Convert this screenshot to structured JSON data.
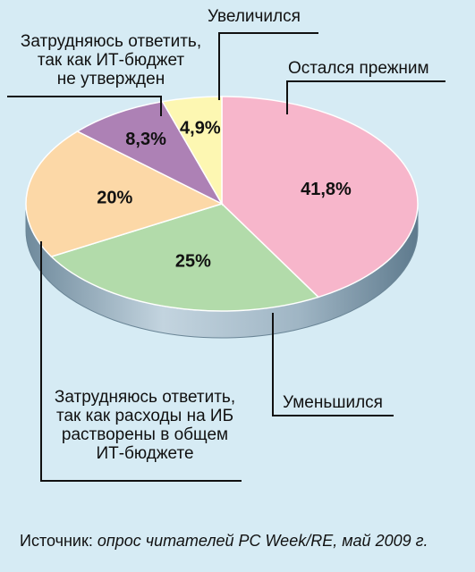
{
  "chart_data": {
    "type": "pie",
    "style": "3d",
    "slices": [
      {
        "label": "Остался прежним",
        "value": 41.8,
        "display": "41,8%",
        "color": "#f7b6cb"
      },
      {
        "label": "Уменьшился",
        "value": 25,
        "display": "25%",
        "color": "#b2dbaa"
      },
      {
        "label": "Затрудняюсь ответить, так как расходы на ИБ растворены в общем ИТ-бюджете",
        "value": 20,
        "display": "20%",
        "color": "#fcd8a7"
      },
      {
        "label": "Затрудняюсь ответить, так как ИТ-бюджет не утвержден",
        "value": 8.3,
        "display": "8,3%",
        "color": "#ad81b5"
      },
      {
        "label": "Увеличился",
        "value": 4.9,
        "display": "4,9%",
        "color": "#fdf7b2"
      }
    ]
  },
  "labels": {
    "increased": "Увеличился",
    "unchanged": "Остался прежним",
    "decreased": "Уменьшился",
    "hard_budget": [
      "Затрудняюсь ответить,",
      "так как ИТ-бюджет",
      "не утвержден"
    ],
    "hard_dissolved": [
      "Затрудняюсь ответить,",
      "так как расходы на ИБ",
      "растворены в общем",
      "ИТ-бюджете"
    ]
  },
  "source": {
    "prefix": "Источник:",
    "text": "опрос читателей PC Week/RE, май 2009 г."
  },
  "colors": {
    "background": "#d6ebf4",
    "side": "#8aa3b4"
  }
}
